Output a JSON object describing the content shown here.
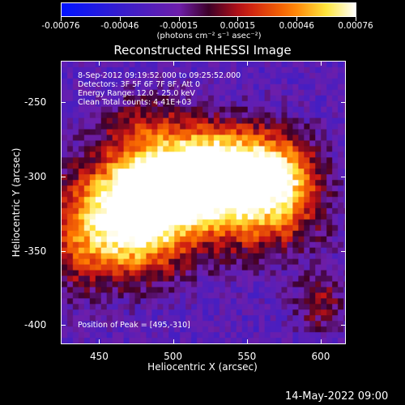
{
  "colorbar": {
    "ticks": [
      "-0.00076",
      "-0.00046",
      "-0.00015",
      "0.00015",
      "0.00046",
      "0.00076"
    ],
    "units": "(photons cm⁻² s⁻¹ asec⁻²)"
  },
  "title": "Reconstructed RHESSI Image",
  "info": {
    "time": "8-Sep-2012 09:19:52.000 to 09:25:52.000",
    "detectors": "Detectors: 3F 5F 6F 7F 8F, Att 0",
    "energy": "Energy Range: 12.0 - 25.0 keV",
    "clean": "Clean    Total counts: 4.41E+03"
  },
  "peak_label": "Position of Peak = [495,-310]",
  "timestamp": "14-May-2022 09:00",
  "chart_data": {
    "type": "heatmap",
    "title": "Reconstructed RHESSI Image",
    "xlabel": "Heliocentric X (arcsec)",
    "ylabel": "Heliocentric Y (arcsec)",
    "xticks": [
      "450",
      "500",
      "550",
      "600"
    ],
    "yticks": [
      "-250",
      "-300",
      "-350",
      "-400"
    ],
    "xlim": [
      424,
      617
    ],
    "ylim": [
      -413,
      -222
    ],
    "value_range": [
      -0.00076,
      0.00076
    ],
    "peak": [
      495,
      -310
    ],
    "colormap": "blue-purple-red-yellow-white"
  }
}
